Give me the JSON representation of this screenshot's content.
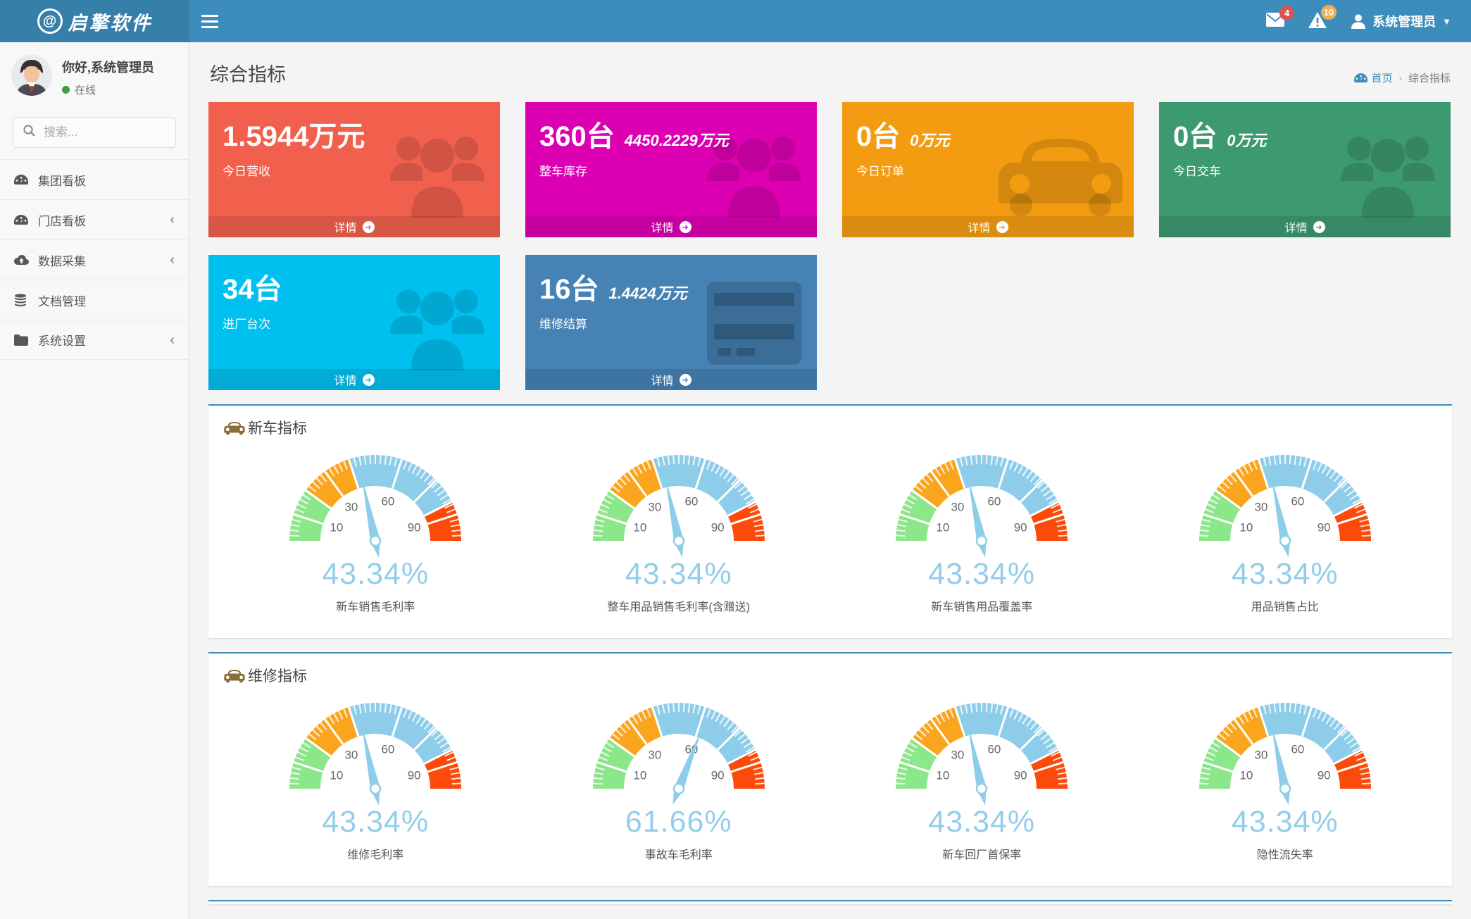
{
  "header": {
    "logo_text": "启擎软件",
    "logo_mark": "@",
    "messages_badge": "4",
    "alerts_badge": "10",
    "user_name": "系统管理员",
    "colors": {
      "navbar": "#3c8dbc",
      "logo_bg": "#367fa9",
      "messages_badge_color": "#d9534f",
      "alerts_badge_color": "#f0ad4e"
    }
  },
  "sidebar": {
    "greeting": "你好,系统管理员",
    "status": "在线",
    "status_color": "#3c9e3c",
    "search_placeholder": "搜索...",
    "items": [
      {
        "label": "集团看板",
        "icon": "dashboard-icon",
        "has_submenu": false
      },
      {
        "label": "门店看板",
        "icon": "dashboard-icon",
        "has_submenu": true
      },
      {
        "label": "数据采集",
        "icon": "cloud-upload-icon",
        "has_submenu": true
      },
      {
        "label": "文档管理",
        "icon": "database-icon",
        "has_submenu": false
      },
      {
        "label": "系统设置",
        "icon": "folder-icon",
        "has_submenu": true
      }
    ],
    "chevron": "‹"
  },
  "page": {
    "title": "综合指标",
    "breadcrumb": {
      "home": "首页",
      "separator": "›",
      "current": "综合指标",
      "home_icon": "dashboard-icon"
    }
  },
  "info_boxes": [
    {
      "value": "1.5944万元",
      "sub_value": "",
      "label": "今日营收",
      "link": "详情",
      "color": "#f0604d",
      "icon": "users-icon"
    },
    {
      "value": "360台",
      "sub_value": "4450.2229万元",
      "label": "整车库存",
      "link": "详情",
      "color": "#dd00b3",
      "icon": "users-icon"
    },
    {
      "value": "0台",
      "sub_value": "0万元",
      "label": "今日订单",
      "link": "详情",
      "color": "#f39c12",
      "icon": "car-icon"
    },
    {
      "value": "0台",
      "sub_value": "0万元",
      "label": "今日交车",
      "link": "详情",
      "color": "#3d9970",
      "icon": "users-icon"
    },
    {
      "value": "34台",
      "sub_value": "",
      "label": "进厂台次",
      "link": "详情",
      "color": "#00c0ef",
      "icon": "users-icon"
    },
    {
      "value": "16台",
      "sub_value": "1.4424万元",
      "label": "维修结算",
      "link": "详情",
      "color": "#4682b4",
      "icon": "credit-card-icon"
    }
  ],
  "panels": [
    {
      "title": "新车指标",
      "icon": "car-icon",
      "gauges": [
        {
          "value": 43.34,
          "display": "43.34%",
          "label": "新车销售毛利率"
        },
        {
          "value": 43.34,
          "display": "43.34%",
          "label": "整车用品销售毛利率(含赠送)"
        },
        {
          "value": 43.34,
          "display": "43.34%",
          "label": "新车销售用品覆盖率"
        },
        {
          "value": 43.34,
          "display": "43.34%",
          "label": "用品销售占比"
        }
      ]
    },
    {
      "title": "维修指标",
      "icon": "car-icon",
      "gauges": [
        {
          "value": 43.34,
          "display": "43.34%",
          "label": "维修毛利率"
        },
        {
          "value": 61.66,
          "display": "61.66%",
          "label": "事故车毛利率"
        },
        {
          "value": 43.34,
          "display": "43.34%",
          "label": "新车回厂首保率"
        },
        {
          "value": 43.34,
          "display": "43.34%",
          "label": "隐性流失率"
        }
      ]
    }
  ],
  "chart_data": {
    "type": "gauge",
    "axis_min": 0,
    "axis_max": 100,
    "tick_labels": [
      10,
      30,
      60,
      90
    ],
    "separator_lines": [
      10,
      20,
      30,
      40,
      60,
      75,
      85,
      90
    ],
    "bands": [
      {
        "from": 0,
        "to": 20,
        "color": "#8ce68a"
      },
      {
        "from": 20,
        "to": 40,
        "color": "#fba51e"
      },
      {
        "from": 40,
        "to": 85,
        "color": "#8ecdea"
      },
      {
        "from": 85,
        "to": 100,
        "color": "#fb4a0a"
      }
    ],
    "needle_color": "#8ecdea",
    "value_color": "#94cdea",
    "values": [
      43.34,
      43.34,
      43.34,
      43.34,
      43.34,
      61.66,
      43.34,
      43.34
    ]
  }
}
